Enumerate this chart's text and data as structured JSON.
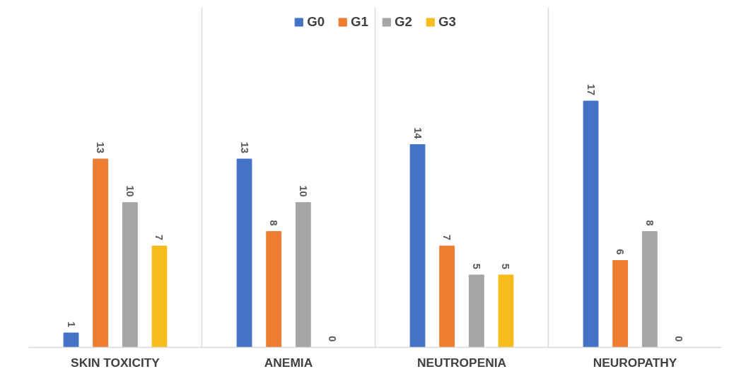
{
  "chart_data": {
    "type": "bar",
    "categories": [
      "SKIN TOXICITY",
      "ANEMIA",
      "NEUTROPENIA",
      "NEUROPATHY"
    ],
    "series": [
      {
        "name": "G0",
        "color": "#4472c4",
        "values": [
          1,
          13,
          14,
          17
        ]
      },
      {
        "name": "G1",
        "color": "#ed7d31",
        "values": [
          13,
          8,
          7,
          6
        ]
      },
      {
        "name": "G2",
        "color": "#a5a5a5",
        "values": [
          10,
          10,
          5,
          8
        ]
      },
      {
        "name": "G3",
        "color": "#f5bc1c",
        "values": [
          7,
          0,
          5,
          0
        ]
      }
    ],
    "data_labels": true,
    "grid": "x",
    "legend": "top"
  }
}
